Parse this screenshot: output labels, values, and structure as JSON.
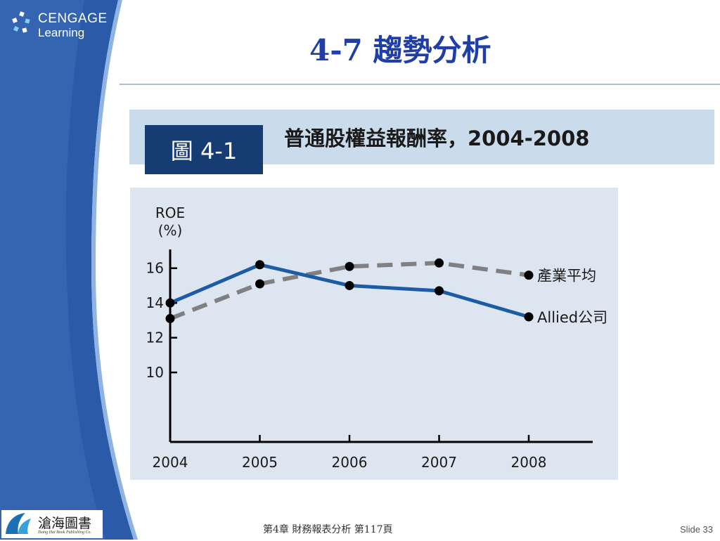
{
  "header": {
    "logo_line1": "CENGAGE",
    "logo_line2": "Learning",
    "title": "4-7 趨勢分析"
  },
  "figure": {
    "label": "圖 4-1",
    "caption": "普通股權益報酬率，2004-2008"
  },
  "chart_data": {
    "type": "line",
    "title": "普通股權益報酬率，2004-2008",
    "ylabel": [
      "ROE",
      "(%)"
    ],
    "xlabel": "",
    "x": [
      2004,
      2005,
      2006,
      2007,
      2008
    ],
    "ylim": [
      6,
      17
    ],
    "yticks": [
      10,
      12,
      14,
      16
    ],
    "grid": false,
    "legend": "inline-right",
    "series": [
      {
        "name": "產業平均",
        "values": [
          13.1,
          15.1,
          16.1,
          16.3,
          15.6
        ],
        "style": "dashed",
        "color": "#808080"
      },
      {
        "name": "Allied公司",
        "values": [
          14.0,
          16.2,
          15.0,
          14.7,
          13.2
        ],
        "style": "solid",
        "color": "#1c5ca5"
      }
    ]
  },
  "footer": {
    "publisher_name": "滄海圖書",
    "publisher_sub": "Tsang Hai Book Publishing Co.",
    "page_info": "第4章 財務報表分析 第117頁",
    "slide_number": "Slide 33"
  },
  "colors": {
    "side_dark": "#2a5aa8",
    "side_light": "#6f9ad4",
    "title_blue": "#1f3ea8",
    "band": "#cadcec",
    "label_navy": "#163c74",
    "chart_bg": "#dde5f1"
  }
}
